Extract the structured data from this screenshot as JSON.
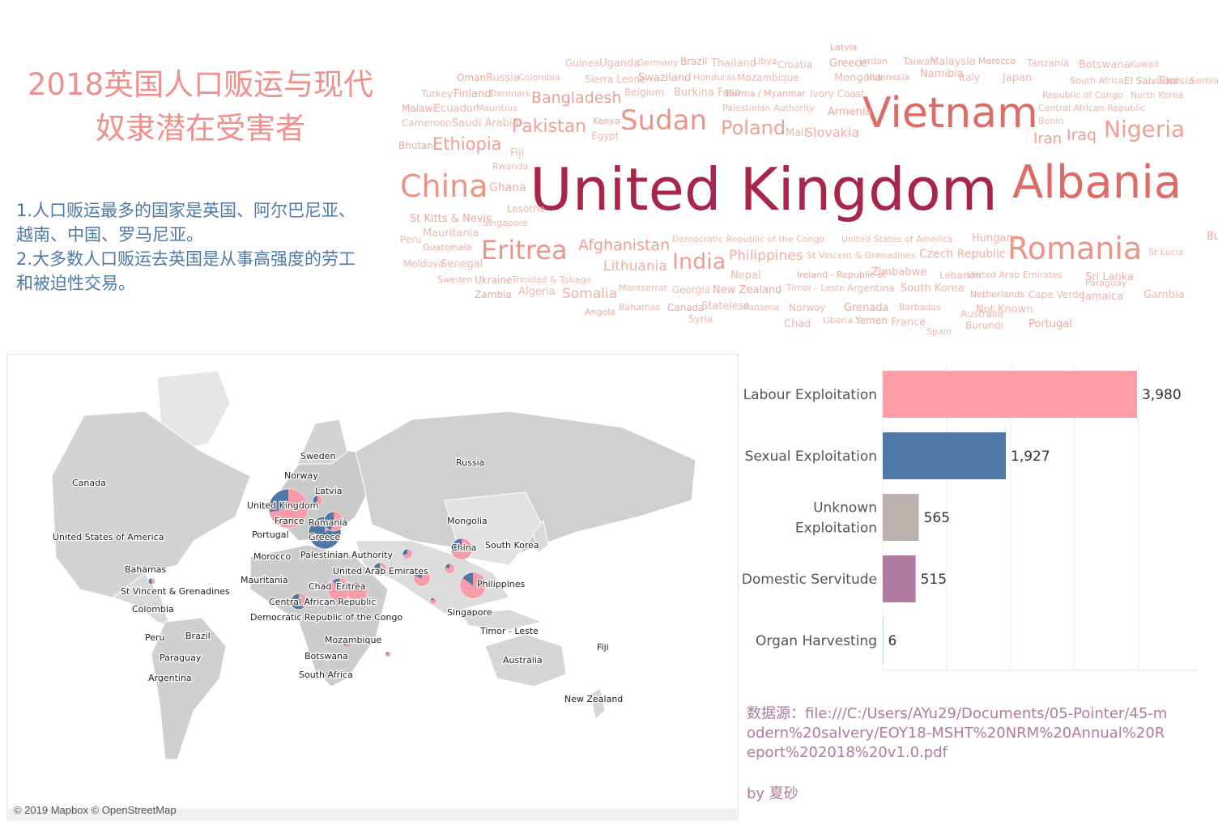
{
  "title": "2018英国人口贩运与现代奴隶潜在受害者",
  "notes": [
    "1.人口贩运最多的国家是英国、阿尔巴尼亚、越南、中国、罗马尼亚。",
    "2.大多数人口贩运去英国是从事高强度的劳工和被迫性交易。"
  ],
  "word_cloud": [
    {
      "text": "United Kingdom",
      "size": 72,
      "tier": 5
    },
    {
      "text": "Albania",
      "size": 56,
      "tier": 4
    },
    {
      "text": "Vietnam",
      "size": 52,
      "tier": 4
    },
    {
      "text": "China",
      "size": 38,
      "tier": 3
    },
    {
      "text": "Romania",
      "size": 38,
      "tier": 3
    },
    {
      "text": "Sudan",
      "size": 34,
      "tier": 3
    },
    {
      "text": "Eritrea",
      "size": 32,
      "tier": 3
    },
    {
      "text": "Nigeria",
      "size": 28,
      "tier": 2
    },
    {
      "text": "India",
      "size": 27,
      "tier": 2
    },
    {
      "text": "Poland",
      "size": 24,
      "tier": 2
    },
    {
      "text": "Pakistan",
      "size": 22,
      "tier": 2
    },
    {
      "text": "Ethiopia",
      "size": 21,
      "tier": 2
    },
    {
      "text": "Bangladesh",
      "size": 19,
      "tier": 2
    },
    {
      "text": "Afghanistan",
      "size": 19,
      "tier": 2
    },
    {
      "text": "Iraq",
      "size": 19,
      "tier": 2
    },
    {
      "text": "Iran",
      "size": 18,
      "tier": 2
    },
    {
      "text": "Slovakia",
      "size": 16,
      "tier": 1
    },
    {
      "text": "Philippines",
      "size": 17,
      "tier": 1
    },
    {
      "text": "Lithuania",
      "size": 17,
      "tier": 1
    },
    {
      "text": "Somalia",
      "size": 17,
      "tier": 1
    },
    {
      "text": "Ghana",
      "size": 14,
      "tier": 1
    },
    {
      "text": "Czech Republic",
      "size": 14,
      "tier": 1
    },
    {
      "text": "Hungary",
      "size": 13,
      "tier": 1
    },
    {
      "text": "Sri Lanka",
      "size": 13,
      "tier": 1
    },
    {
      "text": "Jamaica",
      "size": 13,
      "tier": 1
    },
    {
      "text": "Namibia",
      "size": 13,
      "tier": 1
    },
    {
      "text": "Zimbabwe",
      "size": 13,
      "tier": 1
    },
    {
      "text": "Vietnam_",
      "size": 0,
      "tier": 0
    }
  ],
  "word_cloud_small": [
    "Latvia",
    "Guinea",
    "Uganda",
    "Germany",
    "Brazil",
    "Thailand",
    "Libya",
    "Croatia",
    "Greece",
    "Jordan",
    "Taiwan",
    "Malaysia",
    "Morocco",
    "Tanzania",
    "Botswana",
    "Kuwait",
    "Oman",
    "Russia",
    "Colombia",
    "Sierra Leone",
    "Swaziland",
    "Honduras",
    "Mozambique",
    "Mongolia",
    "Indonesia",
    "Italy",
    "Japan",
    "South Africa",
    "El Salvador",
    "Tunisia",
    "Serbia",
    "Turkey",
    "Finland",
    "Denmark",
    "Belgium",
    "Burkina Faso",
    "Burma / Myanmar",
    "Ivory Coast",
    "Republic of Congo",
    "North Korea",
    "Malawi",
    "Ecuador",
    "Mauritius",
    "Palestinian Authority",
    "Armenia",
    "Central African Republic",
    "Cameroon",
    "Saudi Arabia",
    "Kenya",
    "Egypt",
    "Mali",
    "Benin",
    "Bhutan",
    "Fiji",
    "Rwanda",
    "Lesotho",
    "St Kitts & Nevis",
    "Singapore",
    "Peru",
    "Mauritania",
    "Guatemala",
    "Moldova",
    "Senegal",
    "Sweden",
    "Ukraine",
    "Trinidad & Tobago",
    "Democratic Republic of the Congo",
    "United States of America",
    "Bulgaria",
    "St Lucia",
    "St Vincent & Grenadines",
    "Nepal",
    "Ireland - Republic of",
    "Lebanon",
    "United Arab Emirates",
    "Paraguay",
    "Zambia",
    "Algeria",
    "Montserrat",
    "Georgia",
    "New Zealand",
    "Timor - Leste",
    "Argentina",
    "South Korea",
    "Netherlands",
    "Cape Verde",
    "Gambia",
    "Bahamas",
    "Canada",
    "Stateless",
    "Panama",
    "Norway",
    "Grenada",
    "Barbados",
    "Australia",
    "Not Known",
    "Angola",
    "Syria",
    "Chad",
    "Liberia",
    "Yemen",
    "France",
    "Spain",
    "Burundi",
    "Portugal"
  ],
  "map": {
    "attribution": "© 2019 Mapbox © OpenStreetMap",
    "labels": [
      "Canada",
      "United States of America",
      "Russia",
      "Sweden",
      "Norway",
      "Latvia",
      "United Kingdom",
      "France",
      "Romania",
      "Portugal",
      "Greece",
      "Morocco",
      "Palestinian Authority",
      "Mongolia",
      "China",
      "South Korea",
      "Bahamas",
      "Mauritania",
      "United Arab Emirates",
      "St Vincent & Grenadines",
      "Chad",
      "Eritrea",
      "Philippines",
      "Colombia",
      "Central African Republic",
      "Democratic Republic of the Congo",
      "Singapore",
      "Brazil",
      "Peru",
      "Timor - Leste",
      "Mozambique",
      "Paraguay",
      "Botswana",
      "Fiji",
      "Australia",
      "South Africa",
      "Argentina",
      "New Zealand"
    ]
  },
  "colors": {
    "labour": "#ff9da7",
    "sexual": "#4e79a7",
    "unknown": "#bab0ac",
    "domestic": "#b07aa1",
    "organ": "#76b7b2"
  },
  "chart_data": {
    "type": "bar",
    "orientation": "horizontal",
    "categories": [
      "Labour Exploitation",
      "Sexual Exploitation",
      "Unknown Exploitation",
      "Domestic Servitude",
      "Organ Harvesting"
    ],
    "category_lines": [
      [
        "Labour Exploitation"
      ],
      [
        "Sexual Exploitation"
      ],
      [
        "Unknown",
        "Exploitation"
      ],
      [
        "Domestic Servitude"
      ],
      [
        "Organ Harvesting"
      ]
    ],
    "values": [
      3980,
      1927,
      565,
      515,
      6
    ],
    "value_labels": [
      "3,980",
      "1,927",
      "565",
      "515",
      "6"
    ],
    "colors": [
      "#ff9da7",
      "#4e79a7",
      "#bab0ac",
      "#b07aa1",
      "#76b7b2"
    ],
    "xlim": [
      0,
      4500
    ],
    "grid": true
  },
  "source_text": "数据源：file:///C:/Users/AYu29/Documents/05-Pointer/45-modern%20salvery/EOY18-MSHT%20NRM%20Annual%20Report%202018%20v1.0.pdf",
  "byline": "by 夏砂"
}
